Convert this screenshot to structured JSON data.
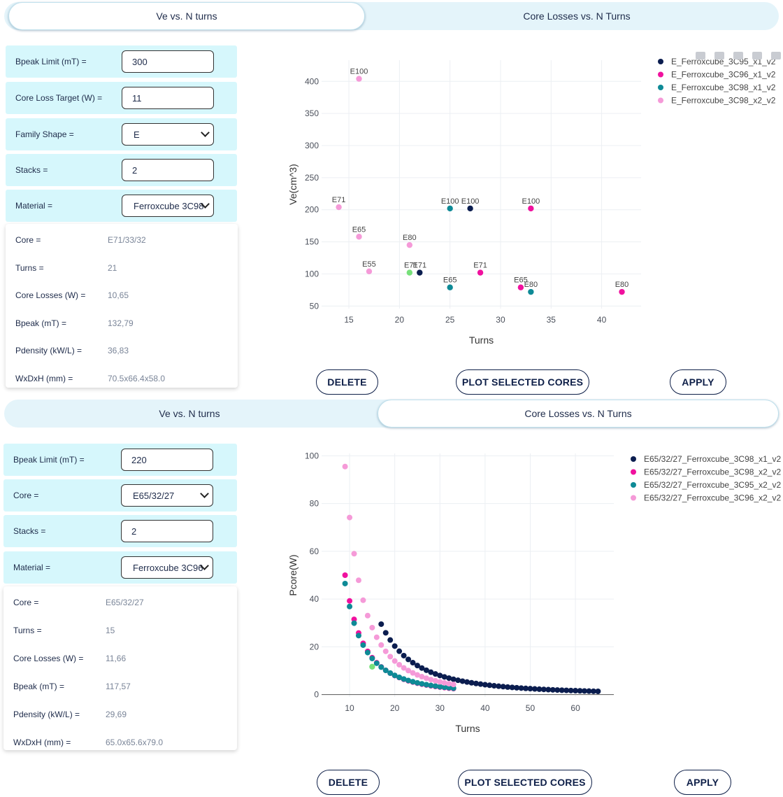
{
  "panels": [
    {
      "tabs": [
        "Ve vs. N turns",
        "Core Losses vs. N Turns"
      ],
      "active_tab": 0,
      "form": [
        {
          "label": "Bpeak Limit (mT) =",
          "kind": "input",
          "value": "300"
        },
        {
          "label": "Core Loss Target (W) =",
          "kind": "input",
          "value": "11"
        },
        {
          "label": "Family Shape =",
          "kind": "select",
          "value": "E"
        },
        {
          "label": "Stacks =",
          "kind": "input",
          "value": "2"
        },
        {
          "label": "Material =",
          "kind": "select",
          "value": "Ferroxcube 3C98"
        }
      ],
      "results": [
        {
          "label": "Core =",
          "value": "E71/33/32"
        },
        {
          "label": "Turns =",
          "value": "21"
        },
        {
          "label": "Core Losses (W) =",
          "value": "10,65"
        },
        {
          "label": "Bpeak (mT) =",
          "value": "132,79"
        },
        {
          "label": "Pdensity (kW/L) =",
          "value": "36,83"
        },
        {
          "label": "WxDxH (mm) =",
          "value": "70.5x66.4x58.0"
        }
      ],
      "buttons": {
        "delete": "DELETE",
        "plot": "PLOT SELECTED CORES",
        "apply": "APPLY"
      }
    },
    {
      "tabs": [
        "Ve vs. N turns",
        "Core Losses vs. N Turns"
      ],
      "active_tab": 1,
      "form": [
        {
          "label": "Bpeak Limit (mT) =",
          "kind": "input",
          "value": "220"
        },
        {
          "label": "Core =",
          "kind": "select",
          "value": "E65/32/27"
        },
        {
          "label": "Stacks =",
          "kind": "input",
          "value": "2"
        },
        {
          "label": "Material =",
          "kind": "select",
          "value": "Ferroxcube 3C96"
        }
      ],
      "results": [
        {
          "label": "Core =",
          "value": "E65/32/27"
        },
        {
          "label": "Turns =",
          "value": "15"
        },
        {
          "label": "Core Losses (W) =",
          "value": "11,66"
        },
        {
          "label": "Bpeak (mT) =",
          "value": "117,57"
        },
        {
          "label": "Pdensity (kW/L) =",
          "value": "29,69"
        },
        {
          "label": "WxDxH (mm) =",
          "value": "65.0x65.6x79.0"
        }
      ],
      "buttons": {
        "delete": "DELETE",
        "plot": "PLOT SELECTED CORES",
        "apply": "APPLY"
      }
    }
  ],
  "highlight_color": "#77e07a",
  "chart_data": [
    {
      "type": "scatter",
      "title": "",
      "xlabel": "Turns",
      "ylabel": "Ve(cm^3)",
      "xlim": [
        12.3,
        43.9
      ],
      "ylim": [
        46,
        433
      ],
      "xticks": [
        15,
        20,
        25,
        30,
        35,
        40
      ],
      "yticks": [
        50,
        100,
        150,
        200,
        250,
        300,
        350,
        400
      ],
      "grid": true,
      "legend": "top-right",
      "series": [
        {
          "name": "E_Ferroxcube_3C95_x1_v2",
          "color": "#0b1d4f",
          "points": [
            {
              "x": 27,
              "y": 202,
              "label": "E100"
            },
            {
              "x": 22,
              "y": 102,
              "label": "E71"
            }
          ]
        },
        {
          "name": "E_Ferroxcube_3C96_x1_v2",
          "color": "#f0119e",
          "points": [
            {
              "x": 33,
              "y": 202,
              "label": "E100"
            },
            {
              "x": 28,
              "y": 102,
              "label": "E71"
            },
            {
              "x": 32,
              "y": 79,
              "label": "E65"
            },
            {
              "x": 42,
              "y": 72,
              "label": "E80"
            }
          ]
        },
        {
          "name": "E_Ferroxcube_3C98_x1_v2",
          "color": "#0e8a96",
          "points": [
            {
              "x": 25,
              "y": 202,
              "label": "E100"
            },
            {
              "x": 25,
              "y": 79,
              "label": "E65"
            },
            {
              "x": 33,
              "y": 72,
              "label": "E80"
            }
          ]
        },
        {
          "name": "E_Ferroxcube_3C98_x2_v2",
          "color": "#f59ad8",
          "points": [
            {
              "x": 16,
              "y": 404,
              "label": "E100"
            },
            {
              "x": 14,
              "y": 204,
              "label": "E71"
            },
            {
              "x": 16,
              "y": 158,
              "label": "E65"
            },
            {
              "x": 21,
              "y": 145,
              "label": "E80"
            },
            {
              "x": 17,
              "y": 104,
              "label": "E55"
            }
          ]
        }
      ],
      "selected": {
        "x": 21,
        "y": 102,
        "label": "E71"
      },
      "modebar": [
        "camera-icon",
        "zoom-icon",
        "zoom-in-icon",
        "zoom-out-icon",
        "autoscale-icon"
      ]
    },
    {
      "type": "scatter",
      "title": "",
      "xlabel": "Turns",
      "ylabel": "Pcore(W)",
      "xlim": [
        3.8,
        68.5
      ],
      "ylim": [
        -1,
        101
      ],
      "xticks": [
        10,
        20,
        30,
        40,
        50,
        60
      ],
      "yticks": [
        0,
        20,
        40,
        60,
        80,
        100
      ],
      "grid": true,
      "legend": "top-right",
      "series": [
        {
          "name": "E65/32/27_Ferroxcube_3C98_x1_v2",
          "color": "#0b1d4f",
          "xrange": [
            17,
            65
          ],
          "y0": 29.5,
          "p": 2.3
        },
        {
          "name": "E65/32/27_Ferroxcube_3C98_x2_v2",
          "color": "#f0119e",
          "xrange": [
            9,
            33
          ],
          "y0": 50,
          "p": 2.3
        },
        {
          "name": "E65/32/27_Ferroxcube_3C95_x2_v2",
          "color": "#0e8a96",
          "xrange": [
            9,
            33
          ],
          "y0": 46.5,
          "p": 2.2
        },
        {
          "name": "E65/32/27_Ferroxcube_3C96_x2_v2",
          "color": "#f59ad8",
          "xrange": [
            9,
            33
          ],
          "y0": 95.5,
          "p": 2.4
        }
      ],
      "selected": {
        "x": 15,
        "y": 11.66,
        "label": ""
      }
    }
  ]
}
